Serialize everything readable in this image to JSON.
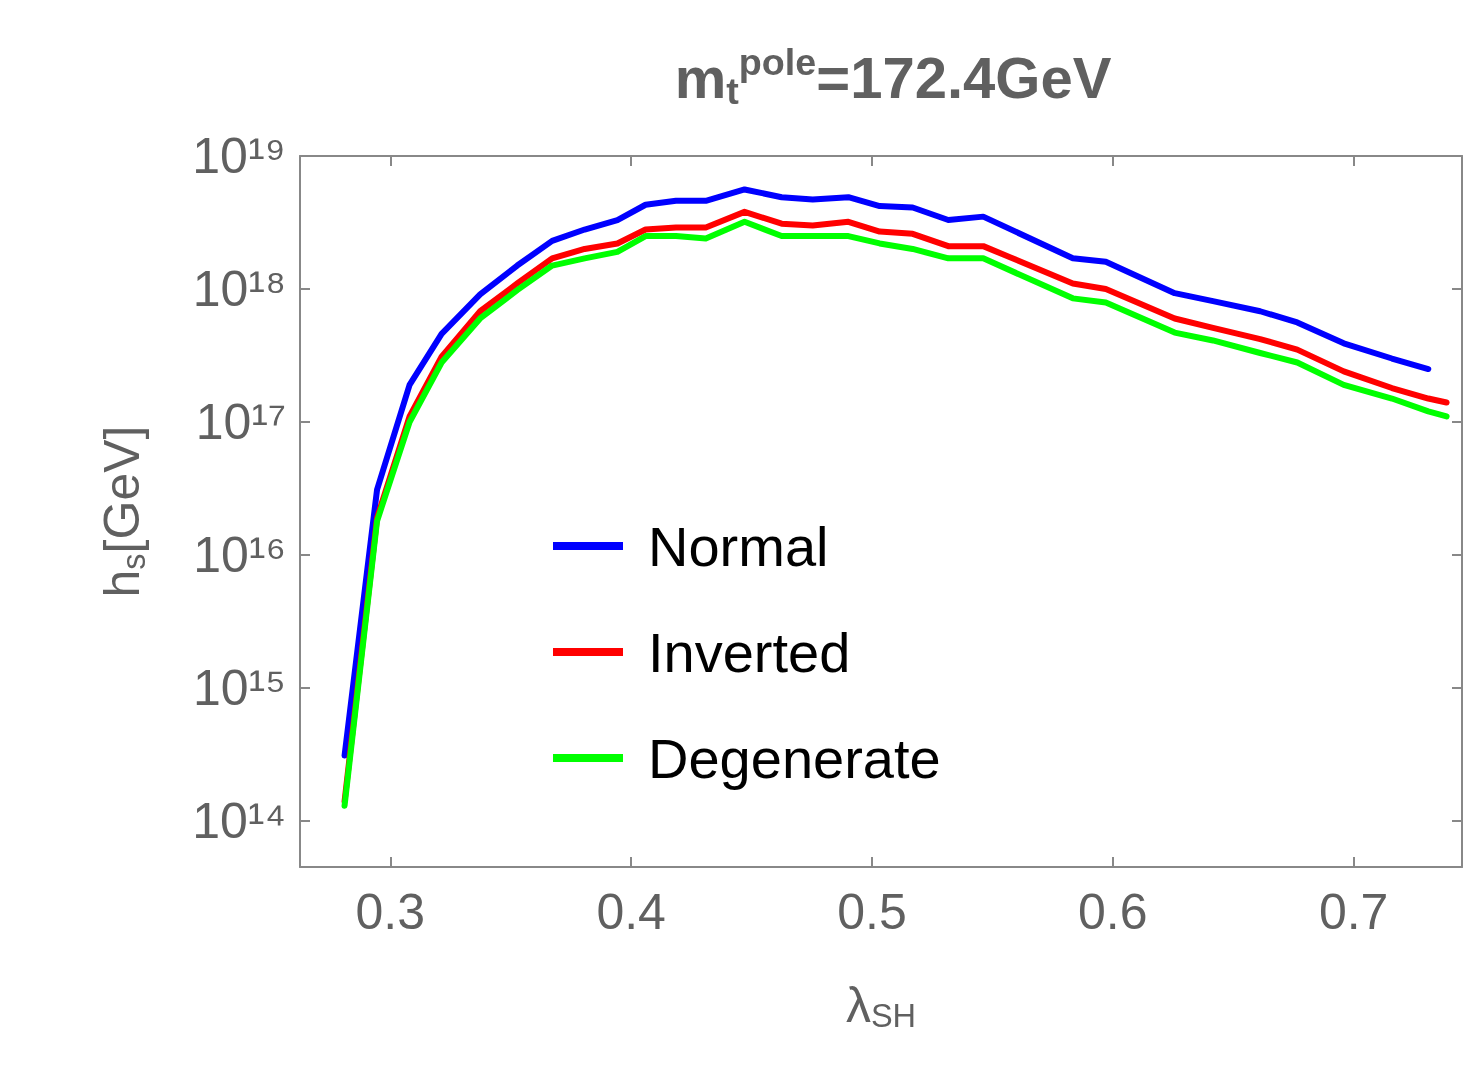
{
  "chart_data": {
    "type": "line",
    "title": "m$_{t}$$^{pole}$=172.4GeV",
    "xlabel": "λ$_{SH}$",
    "ylabel": "h$_{s}$[GeV]",
    "x": [
      0.281,
      0.2945,
      0.308,
      0.3213,
      0.3373,
      0.3527,
      0.3672,
      0.3807,
      0.3943,
      0.406,
      0.4186,
      0.431,
      0.4471,
      0.4625,
      0.4754,
      0.4902,
      0.5032,
      0.5169,
      0.5317,
      0.5462,
      0.5834,
      0.5971,
      0.6257,
      0.6416,
      0.6612,
      0.6766,
      0.6959,
      0.7159,
      0.731,
      0.7386
    ],
    "series": [
      {
        "name": "Normal",
        "color": "#0000ff",
        "values": [
          310000000000000.0,
          3.1e+16,
          1.9e+17,
          4.6e+17,
          9.1e+17,
          1.5e+18,
          2.3e+18,
          2.8e+18,
          3.3e+18,
          4.3e+18,
          4.6e+18,
          4.6e+18,
          5.6e+18,
          4.9e+18,
          4.7e+18,
          4.9e+18,
          4.2e+18,
          4.1e+18,
          3.3e+18,
          3.5e+18,
          1.7e+18,
          1.6e+18,
          9.3e+17,
          8.1e+17,
          6.8e+17,
          5.6e+17,
          3.9e+17,
          3e+17,
          2.5e+17,
          null
        ]
      },
      {
        "name": "Inverted",
        "color": "#ff0000",
        "values": [
          140000000000000.0,
          1.9e+16,
          1.1e+17,
          3.1e+17,
          6.8e+17,
          1.1e+18,
          1.7e+18,
          2e+18,
          2.2e+18,
          2.8e+18,
          2.9e+18,
          2.9e+18,
          3.8e+18,
          3.1e+18,
          3e+18,
          3.2e+18,
          2.7e+18,
          2.6e+18,
          2.1e+18,
          2.1e+18,
          1.1e+18,
          1e+18,
          6e+17,
          5.1e+17,
          4.2e+17,
          3.5e+17,
          2.4e+17,
          1.8e+17,
          1.5e+17,
          1.4e+17
        ]
      },
      {
        "name": "Degenerate",
        "color": "#00ff00",
        "values": [
          130000000000000.0,
          1.8e+16,
          1e+17,
          2.8e+17,
          6e+17,
          9.8e+17,
          1.5e+18,
          1.7e+18,
          1.9e+18,
          2.5e+18,
          2.5e+18,
          2.4e+18,
          3.2e+18,
          2.5e+18,
          2.5e+18,
          2.5e+18,
          2.2e+18,
          2e+18,
          1.7e+18,
          1.7e+18,
          8.5e+17,
          7.9e+17,
          4.7e+17,
          4.1e+17,
          3.3e+17,
          2.8e+17,
          1.9e+17,
          1.5e+17,
          1.2e+17,
          1.1e+17
        ]
      }
    ],
    "xlim": [
      0.2625,
      0.745
    ],
    "xticks": [
      0.3,
      0.4,
      0.5,
      0.6,
      0.7
    ],
    "ylim": [
      45000000000000.0,
      1e+19
    ],
    "yticks": [
      {
        "value": 100000000000000.0,
        "label": "10¹⁴"
      },
      {
        "value": 1000000000000000.0,
        "label": "10¹⁵"
      },
      {
        "value": 1e+16,
        "label": "10¹⁶"
      },
      {
        "value": 1e+17,
        "label": "10¹⁷"
      },
      {
        "value": 1e+18,
        "label": "10¹⁸"
      },
      {
        "value": 1e+19,
        "label": "10¹⁹"
      }
    ],
    "log": "y",
    "grid": false,
    "legend": "center left",
    "marker": "none",
    "line_style": "solid"
  }
}
